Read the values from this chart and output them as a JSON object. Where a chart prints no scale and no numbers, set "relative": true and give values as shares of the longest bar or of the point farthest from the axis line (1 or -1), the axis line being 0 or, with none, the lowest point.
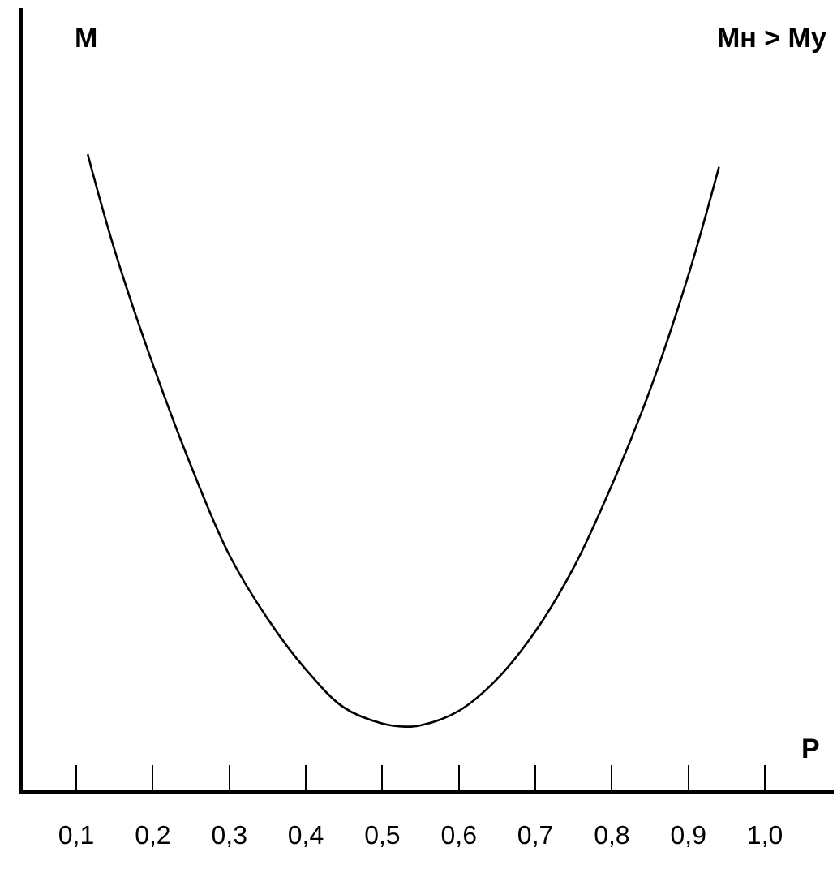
{
  "chart_data": {
    "type": "line",
    "relative": true,
    "xlabel": "P",
    "ylabel": "M",
    "annotations": [
      "Mн > Mу"
    ],
    "x": [
      0.115,
      0.15,
      0.2,
      0.25,
      0.3,
      0.35,
      0.4,
      0.45,
      0.5,
      0.53,
      0.55,
      0.6,
      0.65,
      0.7,
      0.75,
      0.8,
      0.85,
      0.9,
      0.94
    ],
    "series": [
      {
        "color": "#000000",
        "values": [
          1.0,
          0.85,
          0.67,
          0.51,
          0.37,
          0.27,
          0.19,
          0.13,
          0.105,
          0.1,
          0.102,
          0.125,
          0.175,
          0.25,
          0.35,
          0.48,
          0.63,
          0.81,
          0.98
        ]
      }
    ],
    "xlim": [
      0.03,
      1.09
    ],
    "xticks": [
      {
        "value": 0.1,
        "label": "0,1"
      },
      {
        "value": 0.2,
        "label": "0,2"
      },
      {
        "value": 0.3,
        "label": "0,3"
      },
      {
        "value": 0.4,
        "label": "0,4"
      },
      {
        "value": 0.5,
        "label": "0,5"
      },
      {
        "value": 0.6,
        "label": "0,6"
      },
      {
        "value": 0.7,
        "label": "0,7"
      },
      {
        "value": 0.8,
        "label": "0,8"
      },
      {
        "value": 0.9,
        "label": "0,9"
      },
      {
        "value": 1.0,
        "label": "1,0"
      }
    ],
    "marker": "none",
    "line_style": "solid"
  }
}
